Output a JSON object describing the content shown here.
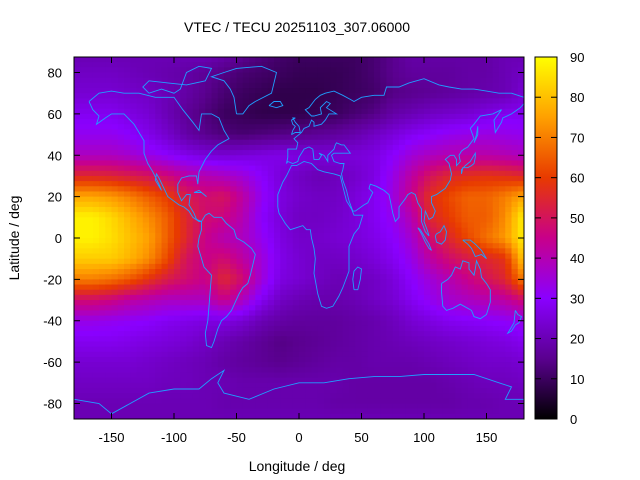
{
  "chart_data": {
    "type": "heatmap",
    "title": "VTEC / TECU 20251103_307.06000",
    "xlabel": "Longitude / deg",
    "ylabel": "Latitude / deg",
    "xlim": [
      -180,
      180
    ],
    "ylim": [
      -87.5,
      87.5
    ],
    "x_ticks": [
      -150,
      -100,
      -50,
      0,
      50,
      100,
      150
    ],
    "y_ticks": [
      -80,
      -60,
      -40,
      -20,
      0,
      20,
      40,
      60,
      80
    ],
    "colorbar": {
      "min": 0,
      "max": 90,
      "ticks": [
        0,
        10,
        20,
        30,
        40,
        50,
        60,
        70,
        80,
        90
      ],
      "palette": [
        "#000000",
        "#5a008f",
        "#8a00ff",
        "#c8008a",
        "#e83a00",
        "#ffa000",
        "#ffff00"
      ]
    },
    "lon_nodes": [
      -180,
      -165,
      -150,
      -135,
      -120,
      -105,
      -90,
      -75,
      -60,
      -45,
      -30,
      -15,
      0,
      15,
      30,
      45,
      60,
      75,
      90,
      105,
      120,
      135,
      150,
      165,
      180
    ],
    "lat_nodes": [
      87.5,
      80,
      70,
      60,
      50,
      40,
      30,
      20,
      10,
      0,
      -10,
      -20,
      -30,
      -40,
      -50,
      -60,
      -70,
      -80,
      -87.5
    ],
    "values": [
      [
        20,
        20,
        20,
        20,
        20,
        20,
        20,
        20,
        18,
        15,
        13,
        11,
        10,
        10,
        10,
        10,
        12,
        15,
        18,
        18,
        18,
        18,
        18,
        20,
        20
      ],
      [
        22,
        22,
        22,
        21,
        20,
        19,
        18,
        16,
        14,
        12,
        11,
        10,
        9,
        9,
        9,
        10,
        12,
        15,
        17,
        17,
        17,
        18,
        18,
        20,
        22
      ],
      [
        24,
        24,
        24,
        23,
        22,
        20,
        18,
        15,
        12,
        10,
        9,
        8,
        8,
        8,
        9,
        10,
        11,
        14,
        15,
        16,
        17,
        18,
        19,
        20,
        24
      ],
      [
        28,
        28,
        28,
        26,
        24,
        20,
        16,
        13,
        10,
        9,
        8,
        8,
        8,
        9,
        10,
        12,
        14,
        18,
        20,
        22,
        23,
        24,
        26,
        28,
        28
      ],
      [
        32,
        32,
        32,
        30,
        27,
        23,
        18,
        15,
        13,
        12,
        13,
        14,
        15,
        16,
        17,
        19,
        22,
        25,
        28,
        30,
        32,
        33,
        34,
        33,
        32
      ],
      [
        38,
        38,
        38,
        36,
        33,
        30,
        27,
        25,
        24,
        25,
        26,
        27,
        26,
        25,
        25,
        25,
        26,
        30,
        35,
        38,
        40,
        41,
        41,
        40,
        38
      ],
      [
        55,
        55,
        54,
        52,
        50,
        47,
        42,
        40,
        38,
        35,
        30,
        25,
        22,
        20,
        21,
        23,
        26,
        33,
        42,
        50,
        55,
        57,
        58,
        57,
        55
      ],
      [
        76,
        76,
        74,
        70,
        65,
        60,
        52,
        48,
        50,
        42,
        32,
        26,
        23,
        22,
        22,
        25,
        28,
        34,
        45,
        57,
        62,
        66,
        66,
        70,
        76
      ],
      [
        88,
        88,
        84,
        78,
        72,
        65,
        55,
        48,
        46,
        40,
        30,
        25,
        22,
        22,
        23,
        25,
        28,
        32,
        40,
        55,
        60,
        65,
        65,
        72,
        88
      ],
      [
        88,
        88,
        85,
        80,
        75,
        65,
        55,
        45,
        40,
        38,
        32,
        26,
        23,
        23,
        24,
        25,
        27,
        30,
        36,
        48,
        55,
        62,
        68,
        74,
        88
      ],
      [
        82,
        82,
        82,
        78,
        72,
        62,
        50,
        45,
        48,
        42,
        35,
        27,
        24,
        22,
        22,
        23,
        25,
        28,
        33,
        42,
        48,
        52,
        55,
        58,
        82
      ],
      [
        70,
        70,
        68,
        64,
        58,
        52,
        48,
        45,
        55,
        48,
        35,
        26,
        24,
        22,
        20,
        21,
        22,
        25,
        30,
        35,
        40,
        45,
        50,
        55,
        70
      ],
      [
        48,
        48,
        46,
        42,
        40,
        38,
        38,
        38,
        45,
        38,
        28,
        22,
        20,
        19,
        19,
        20,
        22,
        24,
        28,
        32,
        36,
        38,
        40,
        42,
        48
      ],
      [
        33,
        33,
        32,
        31,
        30,
        28,
        27,
        26,
        26,
        24,
        20,
        18,
        17,
        17,
        17,
        18,
        19,
        21,
        24,
        26,
        28,
        29,
        30,
        31,
        33
      ],
      [
        28,
        28,
        28,
        27,
        26,
        25,
        24,
        22,
        20,
        18,
        16,
        14,
        15,
        16,
        17,
        18,
        19,
        20,
        21,
        22,
        23,
        24,
        25,
        26,
        28
      ],
      [
        24,
        24,
        24,
        24,
        23,
        22,
        21,
        20,
        18,
        17,
        16,
        15,
        16,
        17,
        18,
        18,
        19,
        19,
        19,
        20,
        21,
        22,
        23,
        23,
        24
      ],
      [
        22,
        22,
        22,
        22,
        22,
        21,
        21,
        20,
        20,
        19,
        19,
        19,
        19,
        19,
        19,
        18,
        18,
        18,
        18,
        18,
        19,
        20,
        21,
        21,
        22
      ],
      [
        20,
        20,
        20,
        20,
        20,
        20,
        20,
        20,
        19,
        19,
        19,
        19,
        19,
        19,
        18,
        18,
        18,
        18,
        18,
        18,
        18,
        19,
        19,
        20,
        20
      ],
      [
        20,
        20,
        20,
        20,
        20,
        20,
        20,
        20,
        20,
        20,
        20,
        20,
        20,
        20,
        20,
        20,
        20,
        20,
        20,
        20,
        20,
        20,
        20,
        20,
        20
      ]
    ],
    "coastline_color": "#1f9fff"
  }
}
